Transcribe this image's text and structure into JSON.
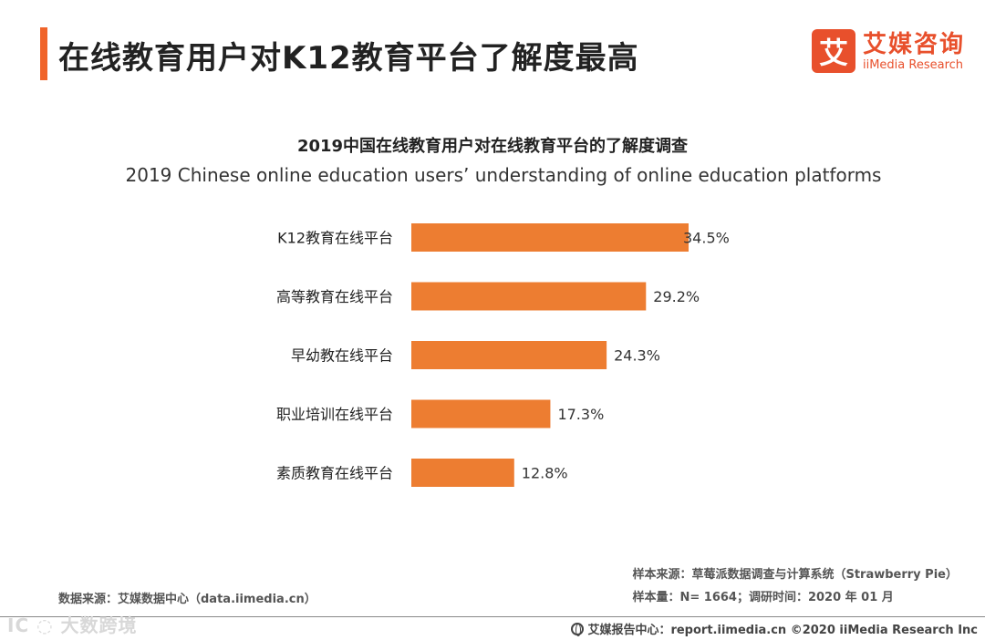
{
  "header": {
    "title": "在线教育用户对K12教育平台了解度最高",
    "logo_mark": "艾",
    "logo_cn": "艾媒咨询",
    "logo_en": "iiMedia Research"
  },
  "chart_data": {
    "type": "bar",
    "orientation": "horizontal",
    "title": "2019中国在线教育用户对在线教育平台的了解度调查",
    "subtitle": "2019 Chinese online education users’  understanding of online education platforms",
    "categories": [
      "K12教育在线平台",
      "高等教育在线平台",
      "早幼教在线平台",
      "职业培训在线平台",
      "素质教育在线平台"
    ],
    "values": [
      34.5,
      29.2,
      24.3,
      17.3,
      12.8
    ],
    "labels": [
      "34.5%",
      "29.2%",
      "24.3%",
      "17.3%",
      "12.8%"
    ],
    "unit": "%",
    "xlim": [
      0,
      34.5
    ],
    "bar_color": "#ed7d31",
    "grid": false
  },
  "footer": {
    "data_source": "数据来源：艾媒数据中心（data.iimedia.cn）",
    "sample_source": "样本来源：草莓派数据调查与计算系统（Strawberry   Pie）",
    "sample_info": "样本量：N= 1664；调研时间：2020 年 01 月",
    "watermark": "IC ◌ 大数跨境",
    "site": "艾媒报告中心：report.iimedia.cn  ©2020  iiMedia Research  Inc"
  },
  "colors": {
    "accent": "#f0642a",
    "brand": "#e8502c",
    "bar": "#ed7d31"
  }
}
